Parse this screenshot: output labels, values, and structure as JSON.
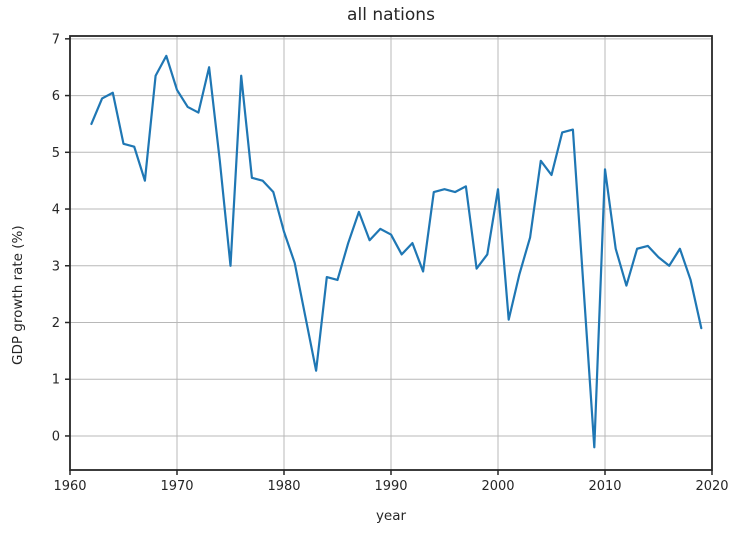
{
  "title": "all nations",
  "chart_data": {
    "type": "line",
    "title": "all nations",
    "xlabel": "year",
    "ylabel": "GDP growth rate (%)",
    "xlim": [
      1960,
      2020
    ],
    "ylim": [
      -0.6,
      7.05
    ],
    "x_ticks": [
      1960,
      1970,
      1980,
      1990,
      2000,
      2010,
      2020
    ],
    "y_ticks": [
      0,
      1,
      2,
      3,
      4,
      5,
      6,
      7
    ],
    "grid": true,
    "legend": "none",
    "line_color": "#1f77b4",
    "grid_color": "#b8b8b8",
    "spine_color": "#262626",
    "series": [
      {
        "name": "GDP growth rate (%)",
        "x": [
          1962,
          1963,
          1964,
          1965,
          1966,
          1967,
          1968,
          1969,
          1970,
          1971,
          1972,
          1973,
          1974,
          1975,
          1976,
          1977,
          1978,
          1979,
          1980,
          1981,
          1982,
          1983,
          1984,
          1985,
          1986,
          1987,
          1988,
          1989,
          1990,
          1991,
          1992,
          1993,
          1994,
          1995,
          1996,
          1997,
          1998,
          1999,
          2000,
          2001,
          2002,
          2003,
          2004,
          2005,
          2006,
          2007,
          2008,
          2009,
          2010,
          2011,
          2012,
          2013,
          2014,
          2015,
          2016,
          2017,
          2018,
          2019
        ],
        "values": [
          5.5,
          5.95,
          6.05,
          5.15,
          5.1,
          4.5,
          6.35,
          6.7,
          6.1,
          5.8,
          5.7,
          6.5,
          4.85,
          3.0,
          6.35,
          4.55,
          4.5,
          4.3,
          3.6,
          3.05,
          2.1,
          1.15,
          2.8,
          2.75,
          3.4,
          3.95,
          3.45,
          3.65,
          3.55,
          3.2,
          3.4,
          2.9,
          4.3,
          4.35,
          4.3,
          4.4,
          2.95,
          3.2,
          4.35,
          2.05,
          2.85,
          3.5,
          4.85,
          4.6,
          5.35,
          5.4,
          2.6,
          -0.2,
          4.7,
          3.3,
          2.65,
          3.3,
          3.35,
          3.15,
          3.0,
          3.3,
          2.75,
          1.9
        ]
      }
    ]
  }
}
